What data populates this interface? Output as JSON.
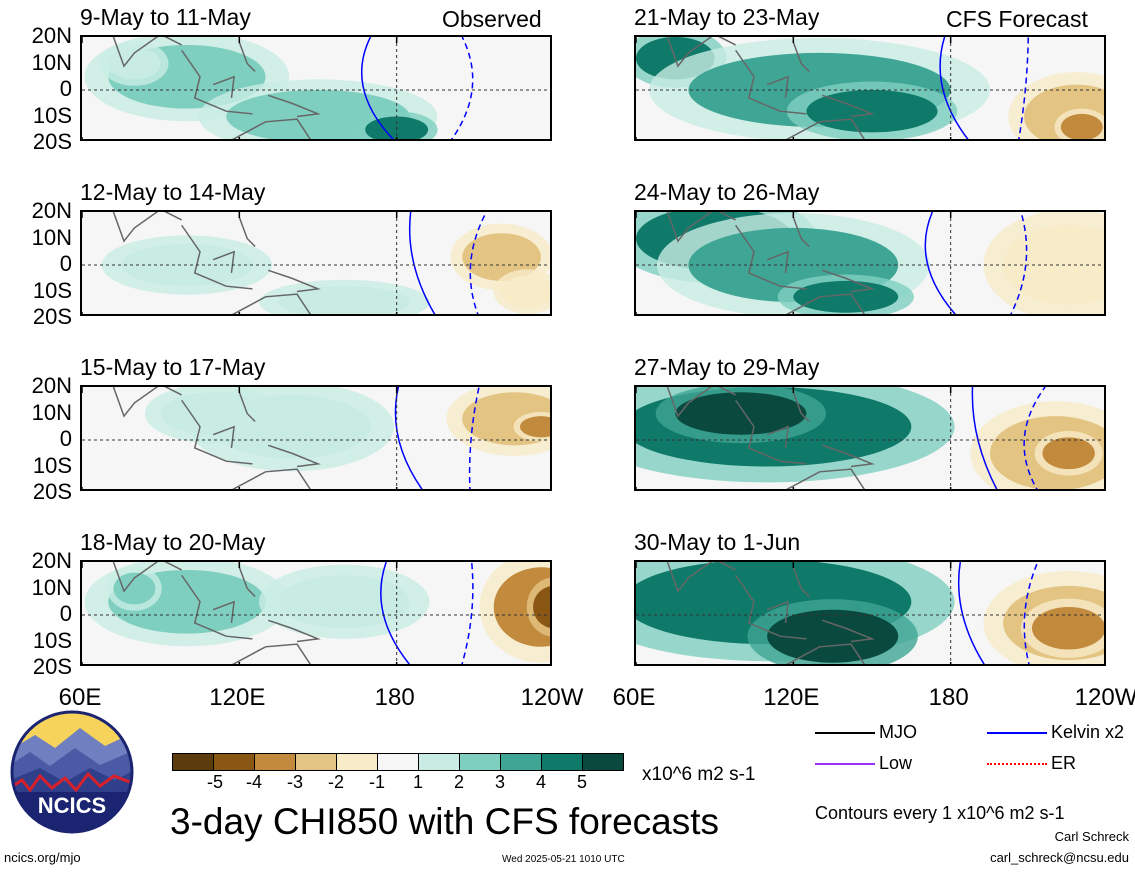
{
  "panels": [
    {
      "title": "9-May to 11-May",
      "tag": "Observed"
    },
    {
      "title": "21-May to 23-May",
      "tag": "CFS Forecast"
    },
    {
      "title": "12-May to 14-May",
      "tag": ""
    },
    {
      "title": "24-May to 26-May",
      "tag": ""
    },
    {
      "title": "15-May to 17-May",
      "tag": ""
    },
    {
      "title": "27-May to 29-May",
      "tag": ""
    },
    {
      "title": "18-May to 20-May",
      "tag": ""
    },
    {
      "title": "30-May to 1-Jun",
      "tag": ""
    }
  ],
  "lat_labels": [
    "20N",
    "10N",
    "0",
    "10S",
    "20S"
  ],
  "lon_labels": [
    "60E",
    "120E",
    "180",
    "120W"
  ],
  "colorbar": {
    "labels": [
      "-5",
      "-4",
      "-3",
      "-2",
      "-1",
      "1",
      "2",
      "3",
      "4",
      "5"
    ],
    "colors": [
      "#5c3b0c",
      "#8a5614",
      "#c28a3c",
      "#e3c483",
      "#f7ebc8",
      "#f6f6f6",
      "#c8ece4",
      "#7fcfc0",
      "#3fa594",
      "#0f7a6a",
      "#0a4a3e"
    ],
    "units": "x10^6 m2 s-1"
  },
  "main_title": "3-day CHI850 with CFS forecasts",
  "legend": [
    {
      "label": "MJO",
      "color": "#000000"
    },
    {
      "label": "Kelvin x2",
      "color": "#0000ff"
    },
    {
      "label": "Low",
      "color": "#9b30ff"
    },
    {
      "label": "ER",
      "color": "#ff0000"
    }
  ],
  "contour_note": "Contours every 1 x10^6 m2 s-1",
  "author": "Carl Schreck",
  "email": "carl_schreck@ncsu.edu",
  "site": "ncics.org/mjo",
  "timestamp": "Wed 2025-05-21 1010 UTC",
  "logo_text": "NCICS"
}
